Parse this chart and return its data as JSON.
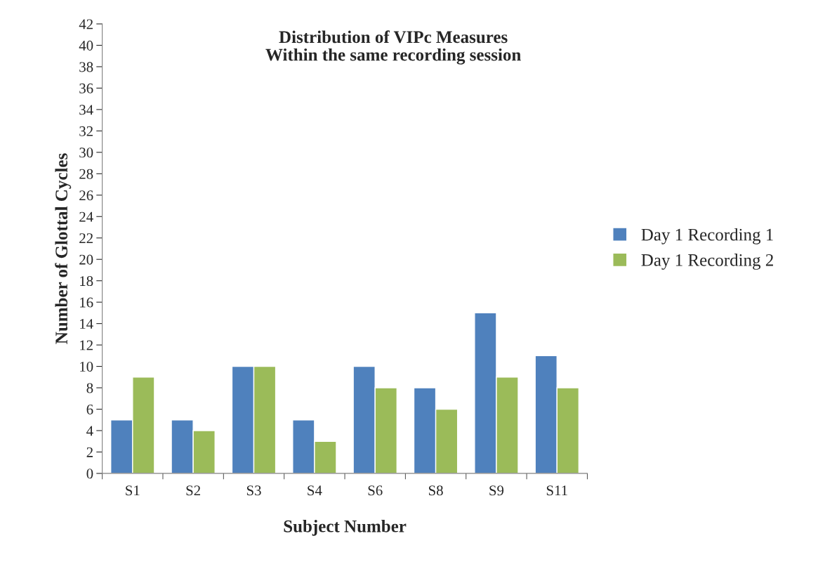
{
  "chart_data": {
    "type": "bar",
    "title": "Distribution of VIPc Measures\nWithin the same recording session",
    "xlabel": "Subject Number",
    "ylabel": "Number of Glottal Cycles",
    "categories": [
      "S1",
      "S2",
      "S3",
      "S4",
      "S6",
      "S8",
      "S9",
      "S11"
    ],
    "series": [
      {
        "name": "Day 1 Recording 1",
        "color": "#4f81bd",
        "values": [
          5,
          5,
          10,
          5,
          10,
          8,
          15,
          11
        ]
      },
      {
        "name": "Day 1 Recording 2",
        "color": "#9bbb59",
        "values": [
          9,
          4,
          10,
          3,
          8,
          6,
          9,
          8
        ]
      }
    ],
    "ylim": [
      0,
      42
    ],
    "yticks": [
      0,
      2,
      4,
      6,
      8,
      10,
      12,
      14,
      16,
      18,
      20,
      22,
      24,
      26,
      28,
      30,
      32,
      34,
      36,
      38,
      40,
      42
    ],
    "grid": false,
    "legend": "right"
  }
}
